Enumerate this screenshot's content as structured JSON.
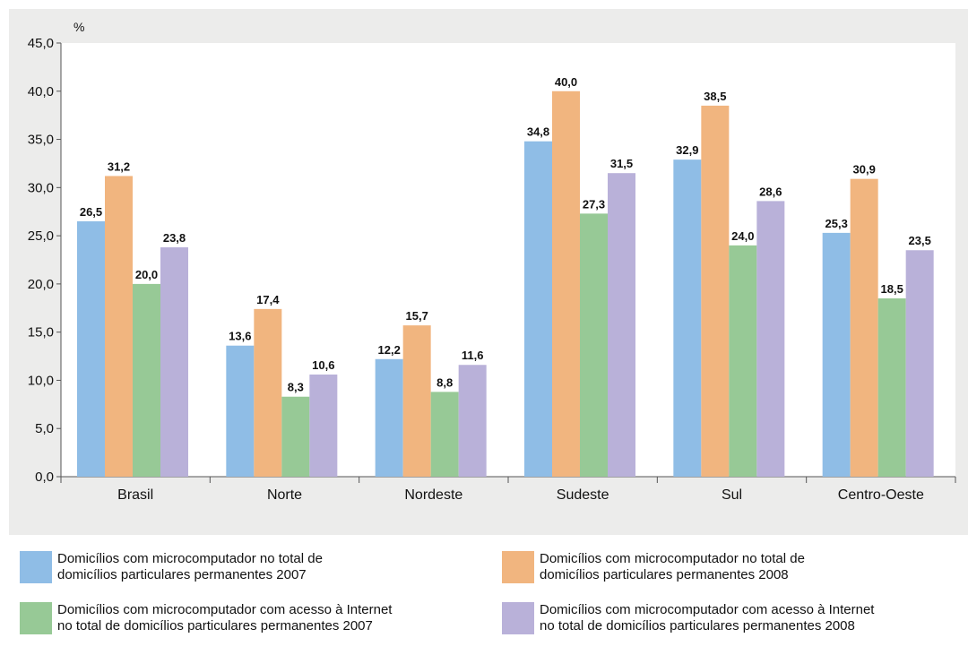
{
  "chart_data": {
    "type": "bar",
    "ylabel": "%",
    "ylim": [
      0,
      45
    ],
    "yticks": [
      "0,0",
      "5,0",
      "10,0",
      "15,0",
      "20,0",
      "25,0",
      "30,0",
      "35,0",
      "40,0",
      "45,0"
    ],
    "categories": [
      "Brasil",
      "Norte",
      "Nordeste",
      "Sudeste",
      "Sul",
      "Centro-Oeste"
    ],
    "grid": false,
    "legend_position": "bottom",
    "series": [
      {
        "name": "Domicílios com microcomputador no total de\ndomicílios particulares permanentes 2007",
        "color": "#8fbde6",
        "values": [
          26.5,
          13.6,
          12.2,
          34.8,
          32.9,
          25.3
        ],
        "labels": [
          "26,5",
          "13,6",
          "12,2",
          "34,8",
          "32,9",
          "25,3"
        ]
      },
      {
        "name": "Domicílios com microcomputador no total de\ndomicílios particulares permanentes 2008",
        "color": "#f1b57f",
        "values": [
          31.2,
          17.4,
          15.7,
          40.0,
          38.5,
          30.9
        ],
        "labels": [
          "31,2",
          "17,4",
          "15,7",
          "40,0",
          "38,5",
          "30,9"
        ]
      },
      {
        "name": "Domicílios com microcomputador com acesso à Internet\nno total de domicílios particulares permanentes 2007",
        "color": "#97c996",
        "values": [
          20.0,
          8.3,
          8.8,
          27.3,
          24.0,
          18.5
        ],
        "labels": [
          "20,0",
          "8,3",
          "8,8",
          "27,3",
          "24,0",
          "18,5"
        ]
      },
      {
        "name": "Domicílios com microcomputador com acesso à Internet\nno total de domicílios particulares permanentes 2008",
        "color": "#b9b1d9",
        "values": [
          23.8,
          10.6,
          11.6,
          31.5,
          28.6,
          23.5
        ],
        "labels": [
          "23,8",
          "10,6",
          "11,6",
          "31,5",
          "28,6",
          "23,5"
        ]
      }
    ]
  }
}
